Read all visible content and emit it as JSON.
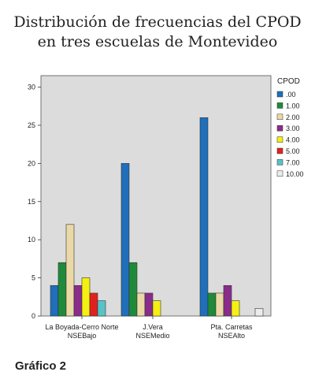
{
  "caption": "Gráfico 2",
  "chart_data": {
    "type": "bar",
    "title_lines": [
      "Distribución de frecuencias del CPOD",
      "en tres escuelas de Montevideo"
    ],
    "legend_title": "CPOD",
    "legend_placement": "right",
    "categories": [
      [
        "La Boyada-Cerro Norte",
        "NSEBajo"
      ],
      [
        "J.Vera",
        "NSEMedio"
      ],
      [
        "Pta. Carretas",
        "NSEAlto"
      ]
    ],
    "y_ticks": [
      0,
      5,
      10,
      15,
      20,
      25,
      30
    ],
    "ylim": [
      0,
      31.5
    ],
    "grid": false,
    "series": [
      {
        "name": ".00",
        "color": "#1f6fba",
        "values": [
          4,
          20,
          26
        ]
      },
      {
        "name": "1.00",
        "color": "#1f8a3a",
        "values": [
          7,
          7,
          3
        ]
      },
      {
        "name": "2.00",
        "color": "#ead9a6",
        "values": [
          12,
          3,
          3
        ]
      },
      {
        "name": "3.00",
        "color": "#8a2c8a",
        "values": [
          4,
          3,
          4
        ]
      },
      {
        "name": "4.00",
        "color": "#f4f012",
        "values": [
          5,
          2,
          2
        ]
      },
      {
        "name": "5.00",
        "color": "#e0221f",
        "values": [
          3,
          0,
          0
        ]
      },
      {
        "name": "7.00",
        "color": "#58c3c6",
        "values": [
          2,
          0,
          0
        ]
      },
      {
        "name": "10.00",
        "color": "#ececec",
        "values": [
          0,
          0,
          1
        ]
      }
    ],
    "plot_background": "#dcdcdc"
  }
}
